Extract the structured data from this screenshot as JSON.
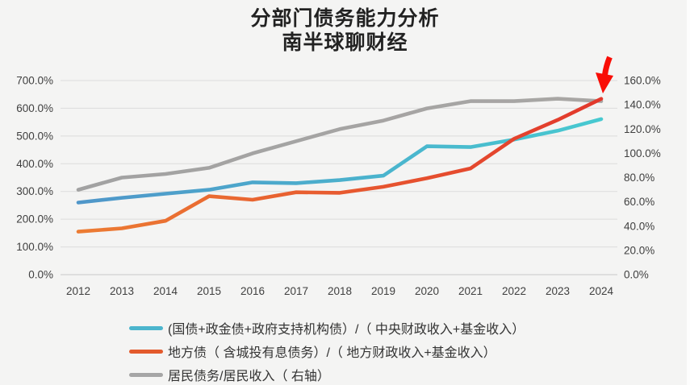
{
  "chart_data": {
    "type": "line",
    "title": "分部门债务能力分析",
    "subtitle": "南半球聊财经",
    "categories": [
      "2012",
      "2013",
      "2014",
      "2015",
      "2016",
      "2017",
      "2018",
      "2019",
      "2020",
      "2021",
      "2022",
      "2023",
      "2024"
    ],
    "left_axis": {
      "min": 0,
      "max": 700,
      "tick_step": 100,
      "unit": "%",
      "ticks": [
        "700.0%",
        "600.0%",
        "500.0%",
        "400.0%",
        "300.0%",
        "200.0%",
        "100.0%",
        "0.0%"
      ]
    },
    "right_axis": {
      "min": 0,
      "max": 160,
      "tick_step": 20,
      "unit": "%",
      "ticks": [
        "160.0%",
        "140.0%",
        "120.0%",
        "100.0%",
        "80.0%",
        "60.0%",
        "40.0%",
        "20.0%",
        "0.0%"
      ]
    },
    "grid": true,
    "legend_position": "bottom-left",
    "series": [
      {
        "name": "(国债+政金债+政府支持机构债）/（ 中央财政收入+基金收入）",
        "axis": "left",
        "values": [
          260,
          277,
          292,
          306,
          333,
          330,
          341,
          357,
          463,
          460,
          487,
          519,
          561
        ],
        "color_start": "#4f96c9",
        "color_end": "#47c9d0",
        "legend_color": "#4bb5cd"
      },
      {
        "name": "地方债（ 含城投有息债务）/（ 地方财政收入+基金收入）",
        "axis": "left",
        "values": [
          155,
          167,
          194,
          283,
          270,
          297,
          295,
          317,
          348,
          383,
          490,
          558,
          634
        ],
        "color_start": "#ec7c33",
        "color_end": "#e2382c",
        "legend_color": "#e35a2c"
      },
      {
        "name": "居民债务/居民收入（ 右轴）",
        "axis": "right",
        "values": [
          70,
          80,
          83,
          88,
          100,
          110,
          120,
          127,
          137,
          143,
          143,
          145,
          143
        ],
        "color_start": "#a2a2a2",
        "color_end": "#a8a6a4",
        "legend_color": "#a6a6a6"
      }
    ],
    "annotation": {
      "type": "arrow",
      "color": "#f90d05",
      "target": "2024 endpoint of local-government debt series"
    }
  }
}
